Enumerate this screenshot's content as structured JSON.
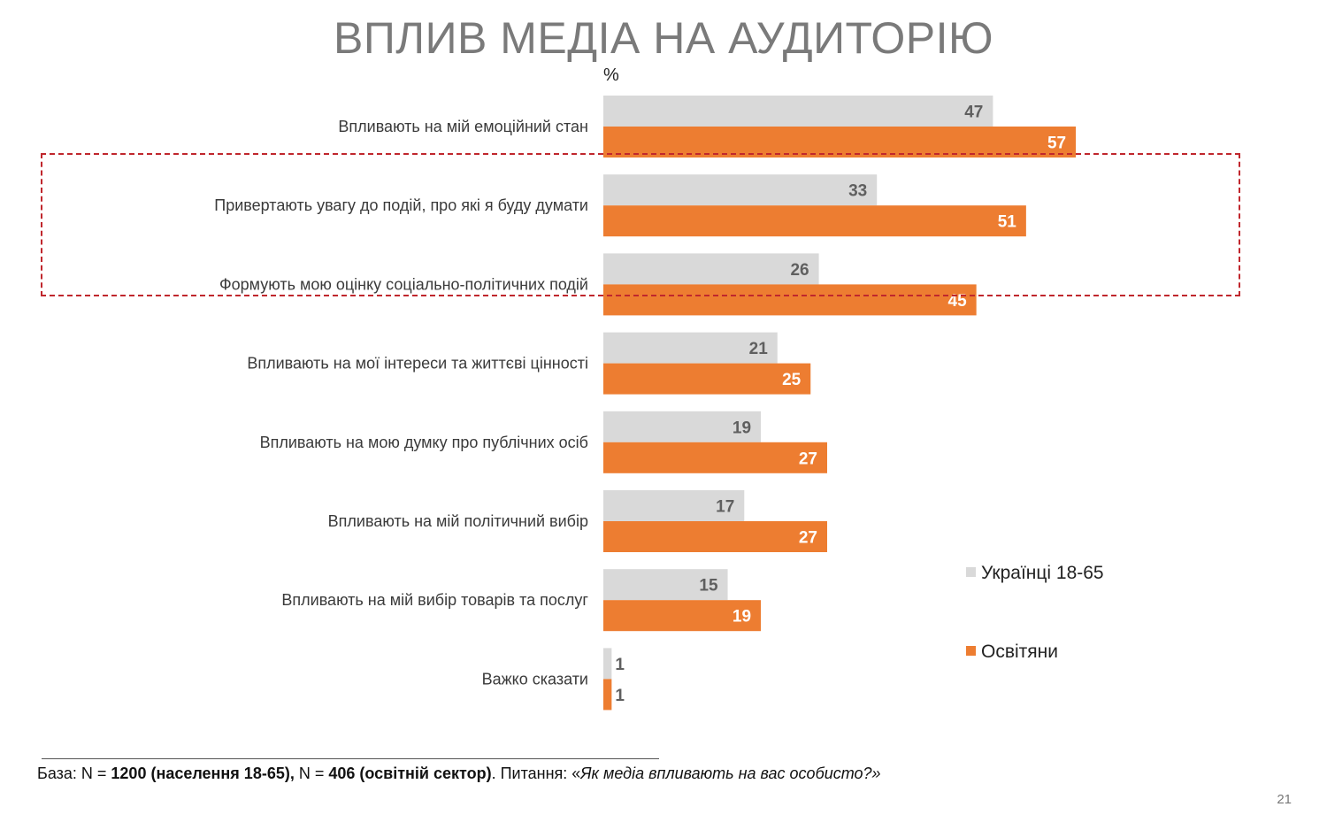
{
  "title": "ВПЛИВ МЕДІА НА АУДИТОРІЮ",
  "unit": "%",
  "chart_data": {
    "type": "bar",
    "orientation": "horizontal",
    "categories": [
      "Впливають на мій емоційний стан",
      "Привертають увагу до подій, про які я буду думати",
      "Формують мою оцінку соціально-політичних подій",
      "Впливають на мої інтереси та життєві цінності",
      "Впливають на мою думку про публічних осіб",
      "Впливають на мій політичний вибір",
      "Впливають на мій вибір товарів та послуг",
      "Важко сказати"
    ],
    "series": [
      {
        "name": "Українці 18-65",
        "color": "#d9d9d9",
        "values": [
          47,
          33,
          26,
          21,
          19,
          17,
          15,
          1
        ]
      },
      {
        "name": "Освітяни",
        "color": "#ed7d31",
        "values": [
          57,
          51,
          45,
          25,
          27,
          27,
          19,
          1
        ]
      }
    ],
    "xlim": [
      0,
      100
    ],
    "grid": false,
    "legend_position": "right",
    "highlighted_categories": [
      1,
      2
    ]
  },
  "footer": {
    "prefix": "База: N = ",
    "n1": "1200 (населення 18-65),",
    "mid": " N = ",
    "n2": "406 (освітній сектор)",
    "question_prefix": ". Питання: «",
    "question": "Як медіа впливають на вас особисто?»"
  },
  "page_number": "21"
}
